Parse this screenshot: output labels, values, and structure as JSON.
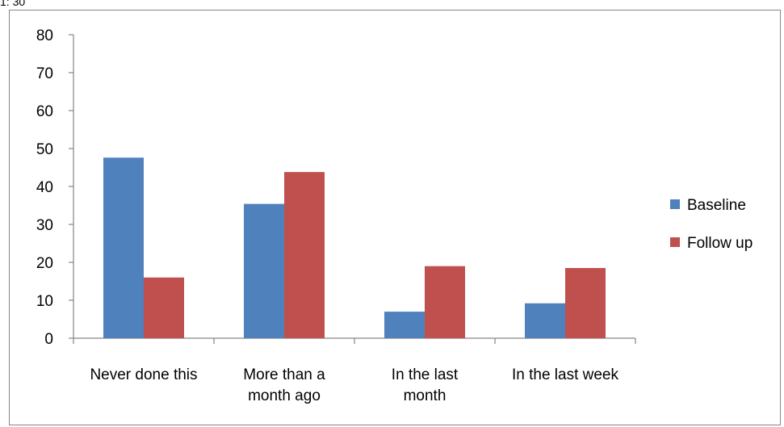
{
  "top_fragment": "1: 30",
  "chart_data": {
    "type": "bar",
    "categories": [
      [
        "Never done this"
      ],
      [
        "More than a",
        "month ago"
      ],
      [
        "In the last",
        "month"
      ],
      [
        "In the last week"
      ]
    ],
    "series": [
      {
        "name": "Baseline",
        "color": "#4f81bd",
        "values": [
          47.6,
          35.4,
          7.0,
          9.2
        ]
      },
      {
        "name": "Follow up",
        "color": "#c0504d",
        "values": [
          16.0,
          43.8,
          19.0,
          18.5
        ]
      }
    ],
    "yticks": [
      "0",
      "10",
      "20",
      "30",
      "40",
      "50",
      "60",
      "70",
      "80"
    ],
    "ylim": [
      0,
      80
    ],
    "grid": false,
    "legend_position": "right",
    "title": "",
    "xlabel": "",
    "ylabel": ""
  }
}
